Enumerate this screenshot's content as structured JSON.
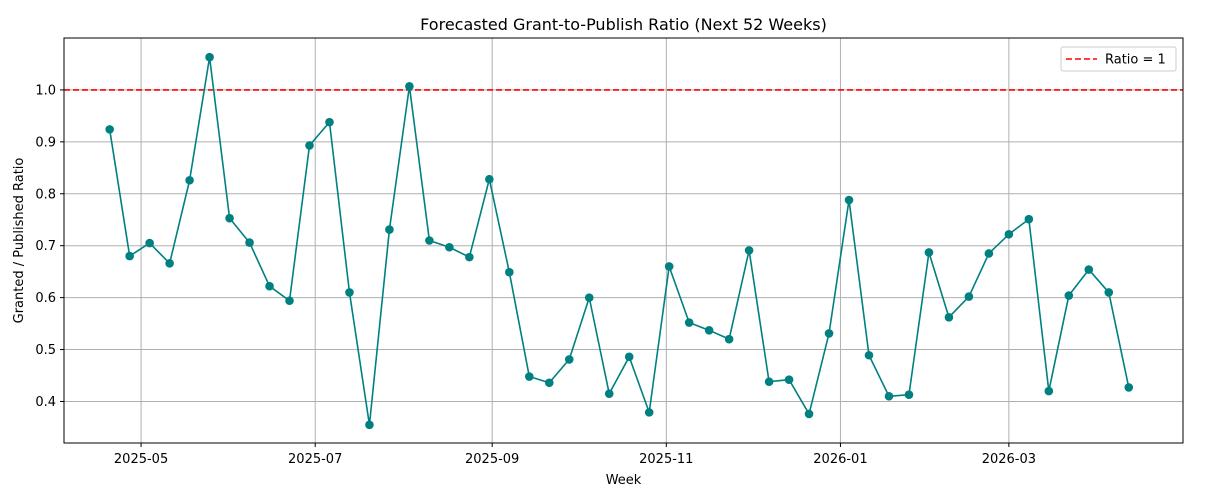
{
  "chart_data": {
    "type": "line",
    "title": "Forecasted Grant-to-Publish Ratio (Next 52 Weeks)",
    "xlabel": "Week",
    "ylabel": "Granted / Published Ratio",
    "x_axis_type": "date",
    "xlim": [
      "2025-04-04",
      "2026-05-01"
    ],
    "ylim": [
      0.32,
      1.1
    ],
    "x_ticks": [
      "2025-05-01",
      "2025-07-01",
      "2025-09-01",
      "2025-11-01",
      "2026-01-01",
      "2026-03-01"
    ],
    "x_tick_labels": [
      "2025-05",
      "2025-07",
      "2025-09",
      "2025-11",
      "2026-01",
      "2026-03"
    ],
    "y_ticks": [
      0.4,
      0.5,
      0.6,
      0.7,
      0.8,
      0.9,
      1.0
    ],
    "y_tick_labels": [
      "0.4",
      "0.5",
      "0.6",
      "0.7",
      "0.8",
      "0.9",
      "1.0"
    ],
    "grid": true,
    "legend_position": "top-right",
    "colors": {
      "series": "#008080",
      "reference": "#ff0000",
      "grid": "#b0b0b0"
    },
    "series": [
      {
        "x": [
          "2025-04-20",
          "2025-04-27",
          "2025-05-04",
          "2025-05-11",
          "2025-05-18",
          "2025-05-25",
          "2025-06-01",
          "2025-06-08",
          "2025-06-15",
          "2025-06-22",
          "2025-06-29",
          "2025-07-06",
          "2025-07-13",
          "2025-07-20",
          "2025-07-27",
          "2025-08-03",
          "2025-08-10",
          "2025-08-17",
          "2025-08-24",
          "2025-08-31",
          "2025-09-07",
          "2025-09-14",
          "2025-09-21",
          "2025-09-28",
          "2025-10-05",
          "2025-10-12",
          "2025-10-19",
          "2025-10-26",
          "2025-11-02",
          "2025-11-09",
          "2025-11-16",
          "2025-11-23",
          "2025-11-30",
          "2025-12-07",
          "2025-12-14",
          "2025-12-21",
          "2025-12-28",
          "2026-01-04",
          "2026-01-11",
          "2026-01-18",
          "2026-01-25",
          "2026-02-01",
          "2026-02-08",
          "2026-02-15",
          "2026-02-22",
          "2026-03-01",
          "2026-03-08",
          "2026-03-15",
          "2026-03-22",
          "2026-03-29",
          "2026-04-05",
          "2026-04-12"
        ],
        "y": [
          0.924,
          0.68,
          0.705,
          0.666,
          0.826,
          1.063,
          0.753,
          0.706,
          0.622,
          0.594,
          0.893,
          0.938,
          0.61,
          0.355,
          0.731,
          1.007,
          0.71,
          0.697,
          0.678,
          0.828,
          0.649,
          0.448,
          0.436,
          0.481,
          0.6,
          0.415,
          0.486,
          0.379,
          0.66,
          0.552,
          0.537,
          0.52,
          0.691,
          0.438,
          0.442,
          0.376,
          0.531,
          0.788,
          0.489,
          0.41,
          0.413,
          0.687,
          0.562,
          0.602,
          0.685,
          0.722,
          0.751,
          0.42,
          0.604,
          0.654,
          0.61,
          0.427
        ]
      }
    ],
    "reference_line": {
      "y": 1.0,
      "label": "Ratio = 1"
    }
  }
}
